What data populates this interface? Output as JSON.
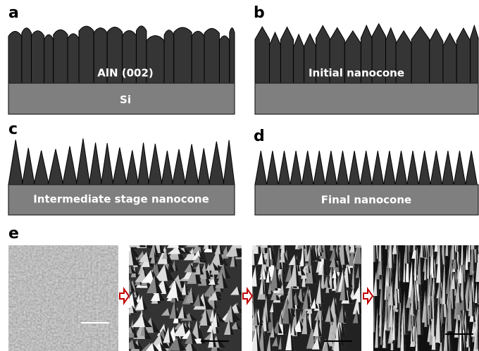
{
  "panels": [
    {
      "label": "a",
      "layers": [
        "AlN (002)",
        "Si"
      ]
    },
    {
      "label": "b",
      "layers": [
        "Initial nanocone"
      ]
    },
    {
      "label": "c",
      "layers": [
        "Intermediate stage nanocone"
      ]
    },
    {
      "label": "d",
      "layers": [
        "Final nanocone"
      ]
    },
    {
      "label": "e"
    }
  ]
}
